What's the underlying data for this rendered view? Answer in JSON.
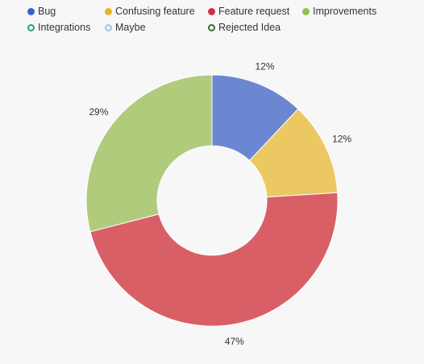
{
  "chart_data": {
    "type": "pie",
    "variant": "donut",
    "title": "",
    "legend_position": "top-left",
    "legend": [
      {
        "name": "Bug",
        "color": "#3366cc",
        "filled": true
      },
      {
        "name": "Confusing feature",
        "color": "#e6b429",
        "filled": true
      },
      {
        "name": "Feature request",
        "color": "#cc3340",
        "filled": true
      },
      {
        "name": "Improvements",
        "color": "#91bf4a",
        "filled": true
      },
      {
        "name": "Integrations",
        "color": "#2a9d8f",
        "filled": false
      },
      {
        "name": "Maybe",
        "color": "#9ec3f0",
        "filled": false
      },
      {
        "name": "Rejected Idea",
        "color": "#3d6b3a",
        "filled": false
      }
    ],
    "slices": [
      {
        "name": "Bug",
        "value": 12,
        "label": "12%",
        "color": "#6b87d2"
      },
      {
        "name": "Confusing feature",
        "value": 12,
        "label": "12%",
        "color": "#ecc862"
      },
      {
        "name": "Feature request",
        "value": 47,
        "label": "47%",
        "color": "#d95f67"
      },
      {
        "name": "Improvements",
        "value": 29,
        "label": "29%",
        "color": "#b1cb7c"
      }
    ]
  }
}
